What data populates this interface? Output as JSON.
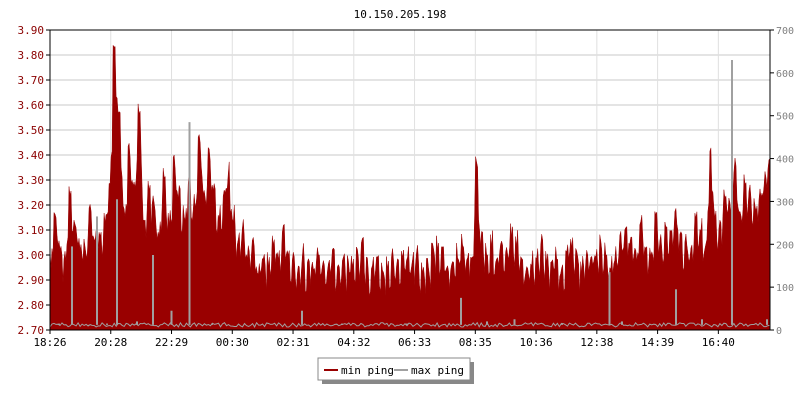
{
  "chart_data": {
    "type": "area",
    "title": "10.150.205.198",
    "x_ticks": [
      "18:26",
      "20:28",
      "22:29",
      "00:30",
      "02:31",
      "04:32",
      "06:33",
      "08:35",
      "10:36",
      "12:38",
      "14:39",
      "16:40"
    ],
    "y_left_ticks": [
      "2.70",
      "2.80",
      "2.90",
      "3.00",
      "3.10",
      "3.20",
      "3.30",
      "3.40",
      "3.50",
      "3.60",
      "3.70",
      "3.80",
      "3.90"
    ],
    "y_left_range": [
      2.7,
      3.9
    ],
    "y_right_ticks": [
      "0",
      "100",
      "200",
      "300",
      "400",
      "500",
      "600",
      "700"
    ],
    "y_right_range": [
      0,
      700
    ],
    "grid": true,
    "legend_position": "bottom-center",
    "series": [
      {
        "name": "min ping",
        "axis": "left",
        "color": "#990000",
        "values": [
          3.02,
          3.2,
          3.1,
          3.05,
          3.3,
          3.15,
          3.1,
          3.08,
          3.25,
          3.12,
          3.1,
          3.2,
          3.3,
          3.84,
          3.6,
          3.2,
          3.45,
          3.3,
          3.64,
          3.2,
          3.3,
          3.25,
          3.15,
          3.35,
          3.2,
          3.4,
          3.3,
          3.2,
          3.35,
          3.25,
          3.52,
          3.3,
          3.45,
          3.3,
          3.2,
          3.3,
          3.4,
          3.2,
          3.1,
          3.15,
          3.05,
          3.1,
          3.0,
          3.05,
          3.02,
          3.1,
          3.05,
          3.15,
          3.05,
          3.02,
          3.0,
          3.05,
          3.0,
          3.02,
          3.05,
          3.0,
          3.0,
          3.05,
          2.98,
          3.05,
          3.0,
          3.02,
          3.05,
          3.1,
          3.0,
          3.02,
          3.05,
          3.0,
          3.02,
          3.05,
          3.0,
          3.05,
          3.05,
          3.02,
          3.05,
          3.0,
          3.02,
          3.05,
          3.1,
          3.05,
          3.0,
          3.02,
          3.05,
          3.1,
          3.05,
          3.02,
          3.42,
          3.1,
          3.05,
          3.1,
          3.05,
          3.1,
          3.05,
          3.15,
          3.1,
          3.05,
          3.0,
          3.02,
          3.05,
          3.1,
          3.05,
          3.02,
          3.05,
          3.0,
          3.05,
          3.1,
          3.05,
          3.0,
          3.05,
          3.02,
          3.05,
          3.1,
          3.05,
          3.02,
          3.05,
          3.1,
          3.15,
          3.1,
          3.05,
          3.2,
          3.1,
          3.05,
          3.2,
          3.1,
          3.15,
          3.1,
          3.2,
          3.15,
          3.1,
          3.05,
          3.2,
          3.15,
          3.1,
          3.49,
          3.2,
          3.15,
          3.3,
          3.25,
          3.4,
          3.2,
          3.35,
          3.3,
          3.25,
          3.3,
          3.35,
          3.45
        ]
      },
      {
        "name": "max ping",
        "axis": "right",
        "color": "#a0a0a0",
        "baseline_value": 12,
        "spikes": [
          {
            "time": "18:44",
            "value": 15
          },
          {
            "time": "19:10",
            "value": 195
          },
          {
            "time": "19:43",
            "value": 10
          },
          {
            "time": "20:00",
            "value": 265
          },
          {
            "time": "20:20",
            "value": 15
          },
          {
            "time": "20:40",
            "value": 305
          },
          {
            "time": "21:20",
            "value": 20
          },
          {
            "time": "21:52",
            "value": 175
          },
          {
            "time": "22:29",
            "value": 45
          },
          {
            "time": "23:05",
            "value": 485
          },
          {
            "time": "23:50",
            "value": 15
          },
          {
            "time": "02:50",
            "value": 45
          },
          {
            "time": "04:10",
            "value": 15
          },
          {
            "time": "06:20",
            "value": 15
          },
          {
            "time": "08:08",
            "value": 75
          },
          {
            "time": "09:00",
            "value": 20
          },
          {
            "time": "09:55",
            "value": 25
          },
          {
            "time": "11:30",
            "value": 15
          },
          {
            "time": "13:05",
            "value": 135
          },
          {
            "time": "13:30",
            "value": 20
          },
          {
            "time": "15:18",
            "value": 95
          },
          {
            "time": "16:10",
            "value": 25
          },
          {
            "time": "17:10",
            "value": 630
          },
          {
            "time": "18:20",
            "value": 25
          }
        ]
      }
    ]
  }
}
